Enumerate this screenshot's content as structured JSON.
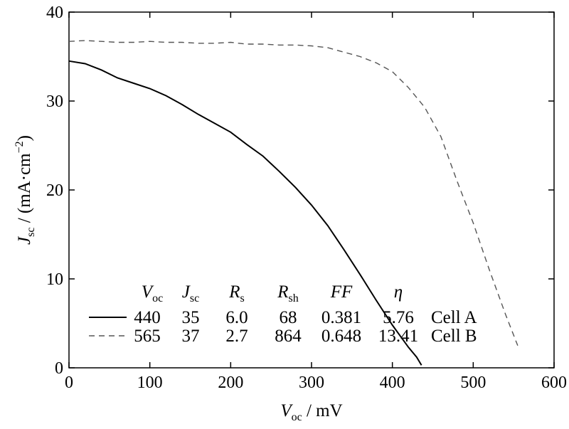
{
  "chart_data": {
    "type": "line",
    "xlabel": {
      "main": "V",
      "sub": "oc",
      "unit": " / mV"
    },
    "ylabel": {
      "main": "J",
      "sub": "sc",
      "unit": " / (mA·cm",
      "sup": "−2",
      "close": ")"
    },
    "xlim": [
      0,
      600
    ],
    "ylim": [
      0,
      40
    ],
    "xticks": [
      0,
      100,
      200,
      300,
      400,
      500,
      600
    ],
    "yticks": [
      0,
      10,
      20,
      30,
      40
    ],
    "xtick_labels": [
      "0",
      "100",
      "200",
      "300",
      "400",
      "500",
      "600"
    ],
    "ytick_labels": [
      "0",
      "10",
      "20",
      "30",
      "40"
    ],
    "grid": false,
    "legend_position": "bottom-left-center",
    "legend_columns": [
      {
        "main": "V",
        "sub": "oc"
      },
      {
        "main": "J",
        "sub": "sc"
      },
      {
        "main": "R",
        "sub": "s"
      },
      {
        "main": "R",
        "sub": "sh"
      },
      {
        "main": "FF",
        "sub": ""
      },
      {
        "main": "η",
        "sub": ""
      }
    ],
    "series": [
      {
        "name": "Cell A",
        "style": "solid",
        "color": "#000000",
        "params": [
          "440",
          "35",
          "6.0",
          "68",
          "0.381",
          "5.76"
        ],
        "x": [
          0,
          20,
          40,
          60,
          80,
          100,
          120,
          140,
          160,
          180,
          200,
          220,
          240,
          260,
          280,
          300,
          320,
          340,
          360,
          380,
          400,
          420,
          430,
          436
        ],
        "y": [
          34.5,
          34.2,
          33.5,
          32.6,
          32.0,
          31.4,
          30.6,
          29.6,
          28.5,
          27.5,
          26.5,
          25.1,
          23.8,
          22.1,
          20.3,
          18.3,
          16.0,
          13.3,
          10.5,
          7.6,
          4.8,
          2.3,
          1.2,
          0.3
        ]
      },
      {
        "name": "Cell B",
        "style": "dashed",
        "color": "#555555",
        "params": [
          "565",
          "37",
          "2.7",
          "864",
          "0.648",
          "13.41"
        ],
        "x": [
          0,
          20,
          40,
          60,
          80,
          100,
          120,
          140,
          160,
          180,
          200,
          220,
          240,
          260,
          280,
          300,
          320,
          340,
          360,
          380,
          400,
          420,
          440,
          460,
          480,
          500,
          520,
          540,
          555
        ],
        "y": [
          36.7,
          36.8,
          36.7,
          36.6,
          36.6,
          36.7,
          36.6,
          36.6,
          36.5,
          36.5,
          36.6,
          36.4,
          36.4,
          36.3,
          36.3,
          36.2,
          36.0,
          35.5,
          35.0,
          34.3,
          33.3,
          31.5,
          29.3,
          26.0,
          21.0,
          16.3,
          11.0,
          6.0,
          2.5
        ]
      }
    ]
  }
}
